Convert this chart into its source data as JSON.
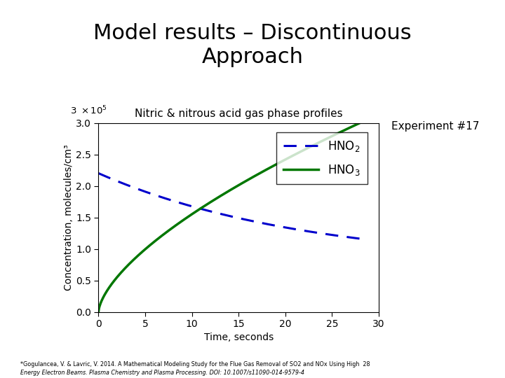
{
  "title_main": "Model results – Discontinuous\nApproach",
  "chart_title": "Nitric & nitrous acid gas phase profiles",
  "experiment_label": "Experiment #17",
  "xlabel": "Time, seconds",
  "ylabel": "Concentration, molecules/cm³",
  "xlim": [
    0,
    30
  ],
  "ylim": [
    0,
    3.0
  ],
  "xticks": [
    0,
    5,
    10,
    15,
    20,
    25,
    30
  ],
  "yticks": [
    0,
    0.5,
    1.0,
    1.5,
    2.0,
    2.5,
    3.0
  ],
  "hno2_color": "#0000cc",
  "hno3_color": "#007700",
  "background_color": "#ffffff",
  "slide_bg": "#ffffff",
  "footnote_normal": "*Gogulancea, V. & Lavric, V. 2014. A Mathematical Modeling Study for the Flue Gas Removal of SO2 and NOx Using High  28",
  "footnote_italic": "Energy Electron Beams. Plasma Chemistry and Plasma Processing. DOI: 10.1007/s11090-014-9579-4",
  "title_fontsize": 22,
  "chart_title_fontsize": 11,
  "axis_label_fontsize": 10,
  "tick_fontsize": 10,
  "legend_fontsize": 12,
  "experiment_fontsize": 11
}
